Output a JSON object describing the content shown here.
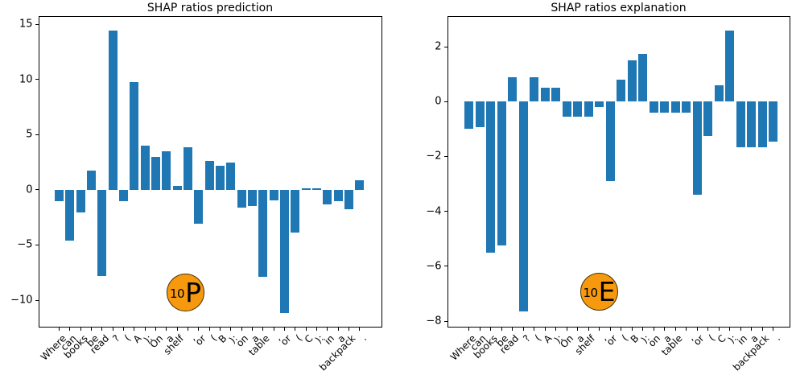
{
  "figure": {
    "background": "#ffffff",
    "bar_color": "#1f77b4",
    "badge_fill": "#f7990e",
    "badge_edge": "#4a3000"
  },
  "chart_data": [
    {
      "type": "bar",
      "title": "SHAP ratios prediction",
      "categories": [
        "Where",
        "can",
        "books",
        "be",
        "read",
        "?",
        "(",
        "A",
        "):",
        "On",
        "a",
        "shelf",
        ",",
        "or",
        "(",
        "B",
        "):",
        "on",
        "a",
        "table",
        ",",
        "or",
        "(",
        "C",
        "):",
        "in",
        "a",
        "backpack",
        "."
      ],
      "values": [
        -1.0,
        -4.6,
        -2.05,
        1.75,
        -7.8,
        14.4,
        -1.0,
        9.75,
        4.0,
        3.0,
        3.5,
        0.35,
        3.85,
        -3.1,
        2.65,
        2.15,
        2.45,
        -1.6,
        -1.45,
        -7.9,
        -0.95,
        -11.15,
        -3.85,
        0.16,
        0.16,
        -1.35,
        -1.05,
        -1.75,
        0.9
      ],
      "xlabel": "",
      "ylabel": "",
      "ylim": [
        -12.4,
        15.7
      ],
      "yticks": [
        15,
        10,
        5,
        0,
        -5,
        -10
      ],
      "grid": false,
      "legend": "none",
      "xtick_rotation": 45,
      "badge": {
        "number": "10",
        "letter": "P"
      }
    },
    {
      "type": "bar",
      "title": "SHAP ratios explanation",
      "categories": [
        "Where",
        "can",
        "books",
        "be",
        "read",
        "?",
        "(",
        "A",
        "):",
        "On",
        "a",
        "shelf",
        ",",
        "or",
        "(",
        "B",
        "):",
        "on",
        "a",
        "table",
        ",",
        "or",
        "(",
        "C",
        "):",
        "in",
        "a",
        "backpack",
        "."
      ],
      "values": [
        -1.0,
        -0.93,
        -5.5,
        -5.25,
        0.9,
        -7.65,
        0.9,
        0.5,
        0.5,
        -0.55,
        -0.55,
        -0.55,
        -0.2,
        -2.9,
        0.8,
        1.5,
        1.75,
        -0.4,
        -0.4,
        -0.4,
        -0.4,
        -3.4,
        -1.25,
        0.6,
        2.6,
        -1.65,
        -1.65,
        -1.65,
        -1.45
      ],
      "xlabel": "",
      "ylabel": "",
      "ylim": [
        -8.2,
        3.1
      ],
      "yticks": [
        2,
        0,
        -2,
        -4,
        -6,
        -8
      ],
      "grid": false,
      "legend": "none",
      "xtick_rotation": 45,
      "badge": {
        "number": "10",
        "letter": "E"
      }
    }
  ]
}
